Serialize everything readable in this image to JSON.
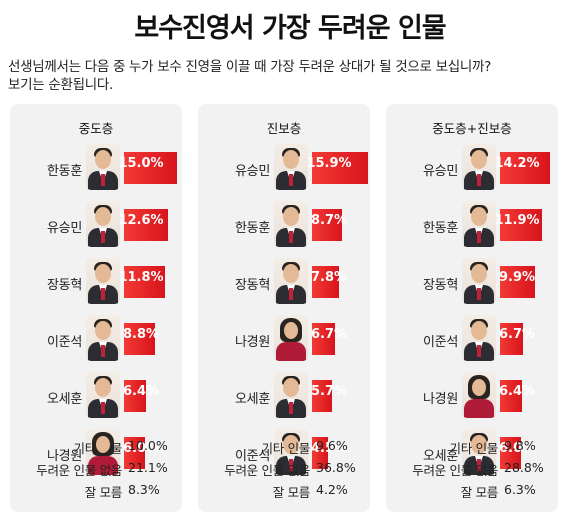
{
  "title": "보수진영서 가장 두려운 인물",
  "question_line1": "선생님께서는 다음 중 누가 보수 진영을 이끌 때 가장 두려운 상대가 될 것으로 보십니까?",
  "question_line2": "보기는 순환됩니다.",
  "colors": {
    "bar": "#e0231f",
    "panel": "#f2f2f2"
  },
  "chart_data": [
    {
      "type": "bar",
      "title": "중도층",
      "categories": [
        "한동훈",
        "유승민",
        "장동혁",
        "이준석",
        "오세훈",
        "나경원"
      ],
      "values": [
        15.0,
        12.6,
        11.8,
        8.8,
        6.4,
        6.0
      ],
      "labels": [
        "15.0%",
        "12.6%",
        "11.8%",
        "8.8%",
        "6.4%",
        "6.0%"
      ],
      "female": [
        false,
        false,
        false,
        false,
        false,
        true
      ],
      "others": [
        {
          "label": "기타 인물",
          "value": "10.0%"
        },
        {
          "label": "두려운 인물 없음",
          "value": "21.1%"
        },
        {
          "label": "잘 모름",
          "value": "8.3%"
        }
      ]
    },
    {
      "type": "bar",
      "title": "진보층",
      "categories": [
        "유승민",
        "한동훈",
        "장동혁",
        "나경원",
        "오세훈",
        "이준석"
      ],
      "values": [
        15.9,
        8.7,
        7.8,
        6.7,
        5.7,
        4.5
      ],
      "labels": [
        "15.9%",
        "8.7%",
        "7.8%",
        "6.7%",
        "5.7%",
        "4.5%"
      ],
      "female": [
        false,
        false,
        false,
        true,
        false,
        false
      ],
      "others": [
        {
          "label": "기타 인물",
          "value": "9.6%"
        },
        {
          "label": "두려운 인물 없음",
          "value": "36.8%"
        },
        {
          "label": "잘 모름",
          "value": "4.2%"
        }
      ]
    },
    {
      "type": "bar",
      "title": "중도층+진보층",
      "categories": [
        "유승민",
        "한동훈",
        "장동혁",
        "이준석",
        "나경원",
        "오세훈"
      ],
      "values": [
        14.2,
        11.9,
        9.9,
        6.7,
        6.4,
        6.0
      ],
      "labels": [
        "14.2%",
        "11.9%",
        "9.9%",
        "6.7%",
        "6.4%",
        "6.0%"
      ],
      "female": [
        false,
        false,
        false,
        false,
        true,
        false
      ],
      "others": [
        {
          "label": "기타 인물",
          "value": "9.8%"
        },
        {
          "label": "두려운 인물 없음",
          "value": "28.8%"
        },
        {
          "label": "잘 모름",
          "value": "6.3%"
        }
      ]
    }
  ]
}
